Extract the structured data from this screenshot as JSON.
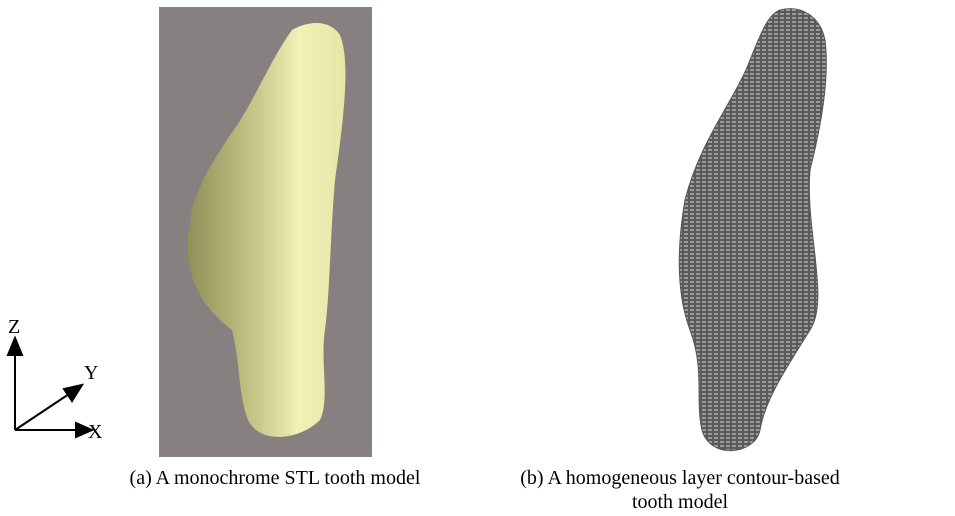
{
  "axes": {
    "z": "Z",
    "y": "Y",
    "x": "X"
  },
  "figures": [
    {
      "caption": "(a) A monochrome STL tooth model"
    },
    {
      "caption": "(b) A homogeneous layer contour-based tooth model"
    }
  ]
}
